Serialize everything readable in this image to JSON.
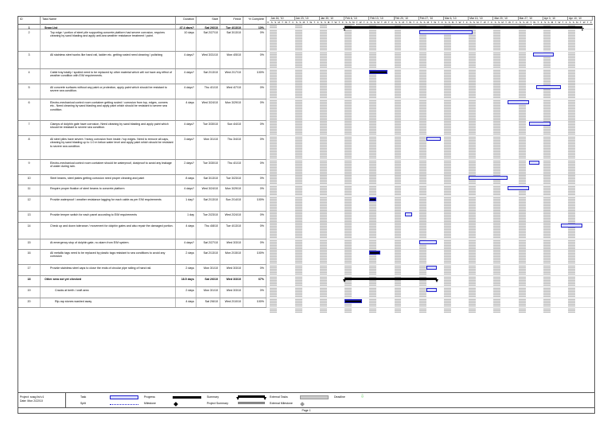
{
  "columns": {
    "id": "ID",
    "name": "Task Name",
    "duration": "Duration",
    "start": "Start",
    "finish": "Finish",
    "complete": "% Complete"
  },
  "timescale": {
    "weeks": [
      "Jan 16, '10",
      "Jan 23, '10",
      "Jan 30, '10",
      "Feb 6, '10",
      "Feb 13, '10",
      "Feb 20, '10",
      "Feb 27, '10",
      "Mar 6, '10",
      "Mar 13, '10",
      "Mar 20, '10",
      "Mar 27, '10",
      "Apr 3, '10",
      "Apr 10, '10"
    ],
    "days": [
      "S",
      "S",
      "M",
      "T",
      "W",
      "T",
      "F"
    ]
  },
  "tasks": [
    {
      "id": "1",
      "name": "Snag List",
      "duration": "47.4 days?",
      "start": "Sat 2/6/10",
      "finish": "Tue 4/13/10",
      "complete": "10%",
      "summary": true
    },
    {
      "id": "2",
      "name": "Top edge / portion of steel pile supporting concrete platform had severe corrosion, requires cleaning by sand blasting and apply anti-sea weather resistance treatment / paint.",
      "duration": "10 days",
      "start": "Sat 2/27/10",
      "finish": "Sat 3/13/10",
      "complete": "0%"
    },
    {
      "id": "3",
      "name": "All stainless steel works like hand rail, ladder etc. getting rusted need cleaning / polishing",
      "duration": "4 days?",
      "start": "Wed 3/31/10",
      "finish": "Mon 4/5/10",
      "complete": "0%"
    },
    {
      "id": "4",
      "name": "Cable tray totally / spoiled need to be replaced by other material which will not have any effect of weather condition with E/M requirements.",
      "duration": "4 days?",
      "start": "Sat 2/13/10",
      "finish": "Wed 2/17/10",
      "complete": "100%"
    },
    {
      "id": "5",
      "name": "All concrete surfaces without any paint or protection, apply paint which should be resistant to severe sea condition.",
      "duration": "4 days?",
      "start": "Thu 4/1/10",
      "finish": "Wed 4/7/10",
      "complete": "0%"
    },
    {
      "id": "6",
      "name": "Electro-mechanical control room container getting rusted / corrosion from top, edges, corners etc.. Need cleaning by sand blasting and apply paint which should be resistant to severe sea condition.",
      "duration": "4 days",
      "start": "Wed 3/24/10",
      "finish": "Mon 3/29/10",
      "complete": "0%"
    },
    {
      "id": "7",
      "name": "Clamps of dolphin gate have corrosion. Need cleaning by sand blasting and apply paint which should be resistant to severe sea condition.",
      "duration": "4 days?",
      "start": "Tue 3/30/10",
      "finish": "Sun 4/4/10",
      "complete": "0%"
    },
    {
      "id": "8",
      "name": "All steel piles have severe / heavy corrosion from inside / top edges. Need to remove all caps, cleaning by sand blasting up to 1.0 m below water level and apply paint which should be resistant to severe sea condition.",
      "duration": "3 days?",
      "start": "Mon 3/1/10",
      "finish": "Thu 3/4/10",
      "complete": "0%"
    },
    {
      "id": "9",
      "name": "Electro-mechanical control room container should be waterproof, dustproof to avoid any leakage of water during rain.",
      "duration": "2 days?",
      "start": "Tue 3/30/10",
      "finish": "Thu 4/1/10",
      "complete": "0%"
    },
    {
      "id": "10",
      "name": "Steel beams, steel plates getting corrosion need proper cleaning and paint",
      "duration": "8 days",
      "start": "Sat 3/13/10",
      "finish": "Tue 3/23/10",
      "complete": "0%"
    },
    {
      "id": "11",
      "name": "Require proper fixation of steel beams to concrete platform",
      "duration": "4 days?",
      "start": "Wed 3/24/10",
      "finish": "Mon 3/29/10",
      "complete": "0%"
    },
    {
      "id": "12",
      "name": "Provide waterproof / weather resistance lagging for each cable as per E/M requirements",
      "duration": "1 day?",
      "start": "Sat 2/13/10",
      "finish": "Sun 2/14/10",
      "complete": "100%"
    },
    {
      "id": "13",
      "name": "Provide temper switch for each panel according to E/M requirements",
      "duration": "1 day",
      "start": "Tue 2/23/10",
      "finish": "Wed 2/24/10",
      "complete": "0%"
    },
    {
      "id": "14",
      "name": "Check up and down tolerance / movement for dolphin gates and also repair the damaged portion.",
      "duration": "4 days",
      "start": "Thu 4/8/10",
      "finish": "Tue 4/13/10",
      "complete": "0%"
    },
    {
      "id": "15",
      "name": "At emergency stop of dolphin gate, no alarm from E/M system.",
      "duration": "4 days?",
      "start": "Sat 2/27/10",
      "finish": "Wed 3/3/10",
      "complete": "0%"
    },
    {
      "id": "16",
      "name": "All metallic tags need to be replaced by plastic tags resistant to sea conditions to avoid any corrosion",
      "duration": "2 days",
      "start": "Sat 2/13/10",
      "finish": "Mon 2/15/10",
      "complete": "100%"
    },
    {
      "id": "17",
      "name": "Provide stainless steel caps to close the ends of circular pipe railing of hand rail.",
      "duration": "2 days",
      "start": "Mon 3/1/10",
      "finish": "Wed 3/3/10",
      "complete": "0%"
    },
    {
      "id": "18",
      "name": "Other area not yet checked",
      "duration": "18.5 days",
      "start": "Sat 2/6/10",
      "finish": "Wed 3/3/10",
      "complete": "67%",
      "summary": true
    },
    {
      "id": "19",
      "name": "Cracks at berth / craft area",
      "duration": "2 days",
      "start": "Mon 3/1/10",
      "finish": "Wed 3/3/10",
      "complete": "0%",
      "sub": true
    },
    {
      "id": "20",
      "name": "Rip-rap stones washed away",
      "duration": "4 days",
      "start": "Sat 2/6/10",
      "finish": "Wed 2/10/10",
      "complete": "100%",
      "sub": true
    }
  ],
  "footer": {
    "project": "Project: snag list v1",
    "date": "Date: Mon 2/22/10",
    "page": "Page 1"
  },
  "legend": {
    "task": "Task",
    "split": "Split",
    "progress": "Progress",
    "milestone": "Milestone",
    "summary": "Summary",
    "project_summary": "Project Summary",
    "external_tasks": "External Tasks",
    "external_milestone": "External Milestone",
    "deadline": "Deadline"
  },
  "colors": {
    "task_border": "#2222cc",
    "task_fill": "#dde0ff",
    "deadline": "#66cc66"
  }
}
